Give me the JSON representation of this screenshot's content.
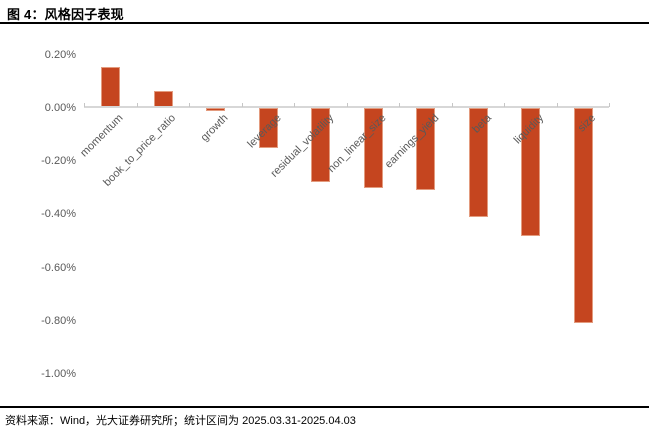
{
  "title": "图 4：风格因子表现",
  "footer": "资料来源：Wind，光大证券研究所；统计区间为 2025.03.31-2025.04.03",
  "colors": {
    "bar": "#C5451F",
    "bar_border": "#E39B7E",
    "axis": "#D7D7D7",
    "tick_label": "#595959",
    "rule": "#000000"
  },
  "chart_data": {
    "type": "bar",
    "title": "图 4：风格因子表现",
    "categories": [
      "momentum",
      "book_to_price_ratio",
      "growth",
      "leverage",
      "residual_volatility",
      "non_linear_size",
      "earnings_yield",
      "beta",
      "liquidity",
      "size"
    ],
    "values": [
      0.15,
      0.06,
      -0.01,
      -0.15,
      -0.28,
      -0.3,
      -0.31,
      -0.41,
      -0.48,
      -0.81
    ],
    "value_unit": "%",
    "xlabel": "",
    "ylabel": "",
    "ylim": [
      -1.0,
      0.2
    ],
    "y_tick_labels": [
      "0.20%",
      "0.00%",
      "-0.20%",
      "-0.40%",
      "-0.60%",
      "-0.80%",
      "-1.00%"
    ],
    "y_tick_values": [
      0.2,
      0.0,
      -0.2,
      -0.4,
      -0.6,
      -0.8,
      -1.0
    ],
    "grid": false,
    "legend": "none",
    "bar_color": "#C5451F"
  }
}
